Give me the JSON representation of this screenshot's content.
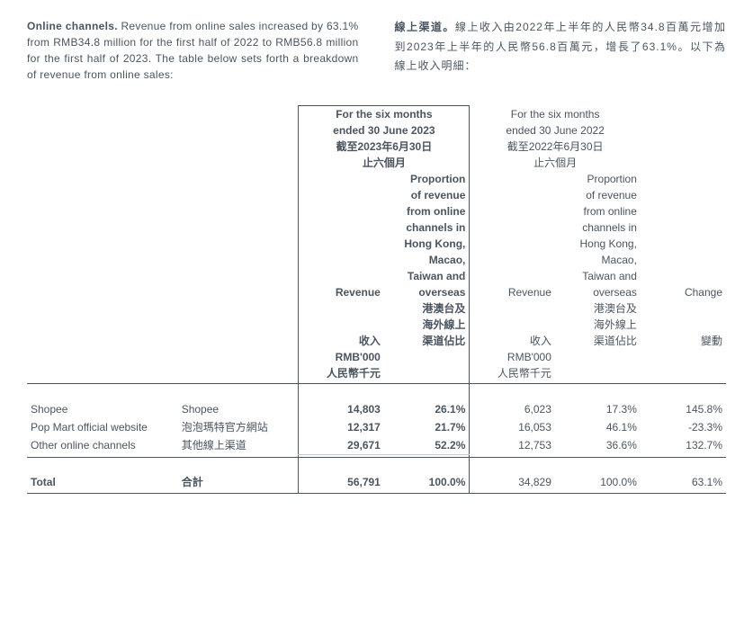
{
  "intro": {
    "en_bold": "Online channels.",
    "en_rest": " Revenue from online sales increased by 63.1% from RMB34.8 million for the first half of 2022 to RMB56.8 million for the first half of 2023. The table below sets forth a breakdown of revenue from online sales:",
    "zh_bold": "線上渠道。",
    "zh_rest": "線上收入由2022年上半年的人民幣34.8百萬元增加到2023年上半年的人民幣56.8百萬元，增長了63.1%。以下為線上收入明細："
  },
  "headers": {
    "period23_en": "For the six months",
    "period23_en2": "ended 30 June 2023",
    "period23_zh": "截至2023年6月30日",
    "period23_zh2": "止六個月",
    "period22_en": "For the six months",
    "period22_en2": "ended 30 June 2022",
    "period22_zh": "截至2022年6月30日",
    "period22_zh2": "止六個月",
    "prop1": "Proportion",
    "prop2": "of revenue",
    "prop3": "from online",
    "prop4": "channels in",
    "prop5": "Hong Kong,",
    "prop6": "Macao,",
    "prop7": "Taiwan and",
    "prop8": "overseas",
    "prop_zh1": "港澳台及",
    "prop_zh2": "海外線上",
    "prop_zh3": "渠道佔比",
    "rev_en": "Revenue",
    "rev_zh": "收入",
    "unit_en": "RMB'000",
    "unit_zh": "人民幣千元",
    "change_en": "Change",
    "change_zh": "變動"
  },
  "rows": [
    {
      "en": "Shopee",
      "zh": "Shopee",
      "rev23": "14,803",
      "prop23": "26.1%",
      "rev22": "6,023",
      "prop22": "17.3%",
      "chg": "145.8%"
    },
    {
      "en": "Pop Mart official website",
      "zh": "泡泡瑪特官方網站",
      "rev23": "12,317",
      "prop23": "21.7%",
      "rev22": "16,053",
      "prop22": "46.1%",
      "chg": "-23.3%"
    },
    {
      "en": "Other online channels",
      "zh": "其他線上渠道",
      "rev23": "29,671",
      "prop23": "52.2%",
      "rev22": "12,753",
      "prop22": "36.6%",
      "chg": "132.7%"
    }
  ],
  "total": {
    "en": "Total",
    "zh": "合計",
    "rev23": "56,791",
    "prop23": "100.0%",
    "rev22": "34,829",
    "prop22": "100.0%",
    "chg": "63.1%"
  },
  "colors": {
    "text": "#4a5560",
    "rule": "#4a5560",
    "light_rule": "#c0c8d0",
    "bg": "#ffffff"
  }
}
